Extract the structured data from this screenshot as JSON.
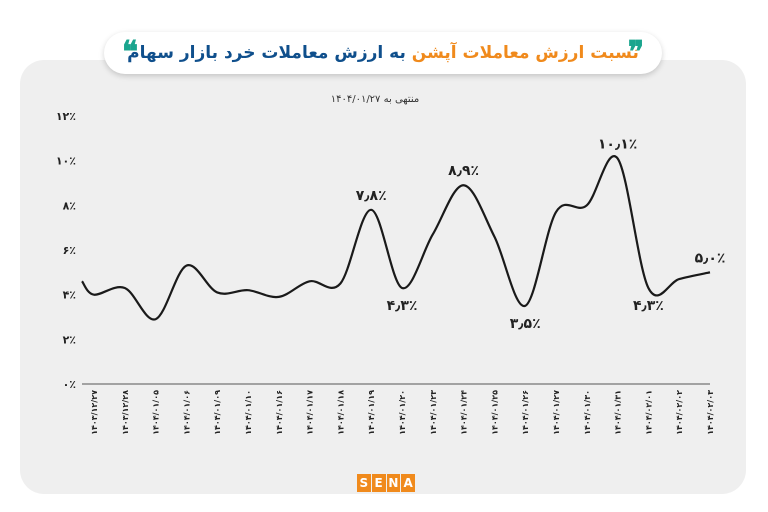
{
  "title": {
    "accent": "نسبت ارزش معاملات آپشن",
    "main": " به ارزش معاملات خرد بازار سهام"
  },
  "logo": {
    "letters": [
      "S",
      "E",
      "N",
      "A"
    ]
  },
  "colors": {
    "accent": "#f08a1c",
    "title": "#0f4f8c",
    "quotes": "#1aa58e",
    "line": "#1a1a1a",
    "card": "#efefef"
  },
  "chart_data": {
    "type": "line",
    "subtitle": "منتهی به ۱۴۰۴/۰۱/۲۷",
    "ylim": [
      0,
      12
    ],
    "y_ticks": [
      {
        "value": 0,
        "label": "۰٪"
      },
      {
        "value": 2,
        "label": "۲٪"
      },
      {
        "value": 4,
        "label": "۴٪"
      },
      {
        "value": 6,
        "label": "۶٪"
      },
      {
        "value": 8,
        "label": "۸٪"
      },
      {
        "value": 10,
        "label": "۱۰٪"
      },
      {
        "value": 12,
        "label": "۱۲٪"
      }
    ],
    "categories": [
      "۱۴۰۳/۱۲/۲۷",
      "۱۴۰۳/۱۲/۲۸",
      "۱۴۰۴/۰۱/۰۵",
      "۱۴۰۴/۰۱/۰۶",
      "۱۴۰۴/۰۱/۰۹",
      "۱۴۰۴/۰۱/۱۰",
      "۱۴۰۴/۰۱/۱۶",
      "۱۴۰۴/۰۱/۱۷",
      "۱۴۰۴/۰۱/۱۸",
      "۱۴۰۴/۰۱/۱۹",
      "۱۴۰۴/۰۱/۲۰",
      "۱۴۰۴/۰۱/۲۳",
      "۱۴۰۴/۰۱/۲۴",
      "۱۴۰۴/۰۱/۲۵",
      "۱۴۰۴/۰۱/۲۶",
      "۱۴۰۴/۰۱/۲۷",
      "۱۴۰۴/۰۱/۳۰",
      "۱۴۰۴/۰۱/۳۱",
      "۱۴۰۴/۰۲/۰۱",
      "۱۴۰۴/۰۲/۰۲",
      "۱۴۰۴/۰۲/۰۳"
    ],
    "series": [
      {
        "values": [
          4.0,
          4.3,
          2.9,
          5.3,
          4.1,
          4.2,
          3.9,
          4.6,
          4.5,
          7.8,
          4.3,
          6.7,
          8.9,
          6.6,
          3.5,
          7.7,
          8.0,
          10.1,
          4.3,
          4.7,
          5.0
        ],
        "start_value": 4.6
      }
    ],
    "data_labels": [
      {
        "index": 9,
        "text": "۷٫۸٪",
        "pos": "above"
      },
      {
        "index": 10,
        "text": "۴٫۳٪",
        "pos": "below"
      },
      {
        "index": 12,
        "text": "۸٫۹٪",
        "pos": "above"
      },
      {
        "index": 14,
        "text": "۳٫۵٪",
        "pos": "below"
      },
      {
        "index": 17,
        "text": "۱۰٫۱٪",
        "pos": "above"
      },
      {
        "index": 18,
        "text": "۴٫۳٪",
        "pos": "below"
      },
      {
        "index": 20,
        "text": "۵٫۰٪",
        "pos": "above"
      }
    ],
    "grid": false,
    "legend": "none"
  }
}
